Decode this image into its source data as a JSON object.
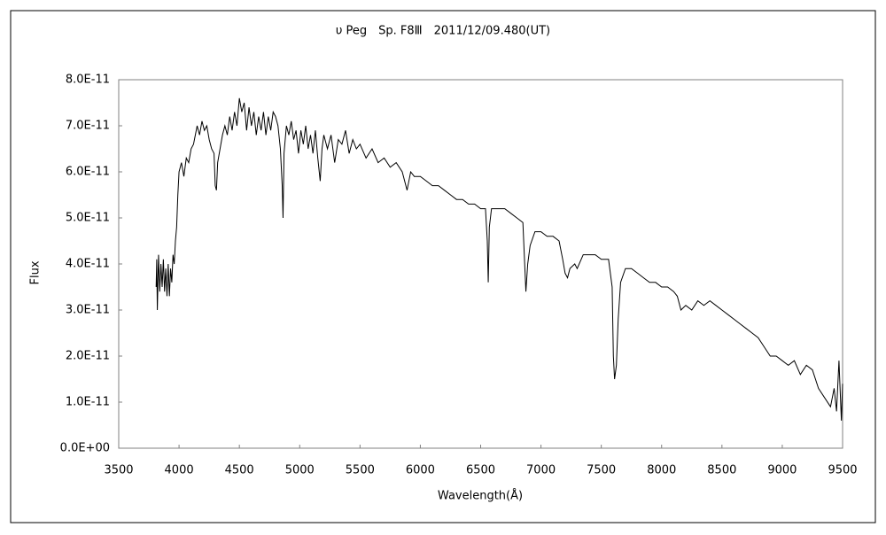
{
  "chart_data": {
    "type": "line",
    "title": "υ Peg　Sp. F8Ⅲ　2011/12/09.480(UT)",
    "xlabel": "Wavelength(Å)",
    "ylabel": "Flux",
    "xlim": [
      3500,
      9500
    ],
    "xticks": [
      3500,
      4000,
      4500,
      5000,
      5500,
      6000,
      6500,
      7000,
      7500,
      8000,
      8500,
      9000,
      9500
    ],
    "ylim": [
      0,
      8e-11
    ],
    "yticks": [
      {
        "value": 0,
        "label": "0.0E+00"
      },
      {
        "value": 1e-11,
        "label": "1.0E-11"
      },
      {
        "value": 2e-11,
        "label": "2.0E-11"
      },
      {
        "value": 3e-11,
        "label": "3.0E-11"
      },
      {
        "value": 4e-11,
        "label": "4.0E-11"
      },
      {
        "value": 5e-11,
        "label": "5.0E-11"
      },
      {
        "value": 6e-11,
        "label": "6.0E-11"
      },
      {
        "value": 7e-11,
        "label": "7.0E-11"
      },
      {
        "value": 8e-11,
        "label": "8.0E-11"
      }
    ],
    "grid": false,
    "color": "#000000",
    "x": [
      3810,
      3815,
      3820,
      3830,
      3840,
      3850,
      3860,
      3870,
      3880,
      3890,
      3900,
      3910,
      3920,
      3930,
      3940,
      3950,
      3960,
      3970,
      3980,
      3990,
      4000,
      4020,
      4040,
      4060,
      4080,
      4100,
      4120,
      4150,
      4170,
      4190,
      4210,
      4230,
      4250,
      4270,
      4290,
      4300,
      4310,
      4320,
      4340,
      4360,
      4380,
      4400,
      4420,
      4440,
      4460,
      4480,
      4500,
      4520,
      4540,
      4560,
      4580,
      4600,
      4620,
      4640,
      4660,
      4680,
      4700,
      4720,
      4740,
      4760,
      4780,
      4800,
      4820,
      4840,
      4855,
      4862,
      4870,
      4890,
      4910,
      4930,
      4950,
      4970,
      4990,
      5010,
      5030,
      5050,
      5070,
      5090,
      5110,
      5130,
      5150,
      5170,
      5185,
      5200,
      5230,
      5260,
      5290,
      5320,
      5350,
      5380,
      5410,
      5440,
      5470,
      5500,
      5550,
      5600,
      5650,
      5700,
      5750,
      5800,
      5850,
      5890,
      5920,
      5950,
      6000,
      6050,
      6100,
      6150,
      6200,
      6250,
      6300,
      6350,
      6400,
      6450,
      6500,
      6540,
      6555,
      6563,
      6572,
      6590,
      6650,
      6700,
      6750,
      6800,
      6850,
      6865,
      6875,
      6890,
      6910,
      6950,
      7000,
      7050,
      7100,
      7150,
      7180,
      7200,
      7220,
      7240,
      7280,
      7300,
      7350,
      7400,
      7450,
      7500,
      7560,
      7590,
      7600,
      7610,
      7625,
      7640,
      7660,
      7700,
      7750,
      7800,
      7850,
      7900,
      7950,
      8000,
      8050,
      8100,
      8130,
      8160,
      8200,
      8250,
      8300,
      8350,
      8400,
      8450,
      8500,
      8550,
      8600,
      8650,
      8700,
      8750,
      8800,
      8850,
      8900,
      8950,
      9000,
      9050,
      9100,
      9150,
      9200,
      9250,
      9300,
      9350,
      9400,
      9430,
      9450,
      9470,
      9490,
      9500
    ],
    "values": [
      3.5e-11,
      4.1e-11,
      3e-11,
      4.2e-11,
      3.4e-11,
      4e-11,
      3.5e-11,
      4.1e-11,
      3.4e-11,
      3.9e-11,
      3.3e-11,
      4e-11,
      3.3e-11,
      3.9e-11,
      3.6e-11,
      4.2e-11,
      4e-11,
      4.5e-11,
      4.8e-11,
      5.5e-11,
      6e-11,
      6.2e-11,
      5.9e-11,
      6.3e-11,
      6.2e-11,
      6.5e-11,
      6.6e-11,
      7e-11,
      6.8e-11,
      7.1e-11,
      6.9e-11,
      7e-11,
      6.7e-11,
      6.5e-11,
      6.4e-11,
      5.7e-11,
      5.6e-11,
      6.2e-11,
      6.5e-11,
      6.8e-11,
      7e-11,
      6.8e-11,
      7.2e-11,
      6.9e-11,
      7.3e-11,
      7e-11,
      7.6e-11,
      7.3e-11,
      7.5e-11,
      6.9e-11,
      7.4e-11,
      7e-11,
      7.3e-11,
      6.8e-11,
      7.2e-11,
      6.9e-11,
      7.3e-11,
      6.8e-11,
      7.2e-11,
      6.9e-11,
      7.3e-11,
      7.2e-11,
      7e-11,
      6.5e-11,
      5.7e-11,
      5e-11,
      6.4e-11,
      7e-11,
      6.8e-11,
      7.1e-11,
      6.7e-11,
      6.9e-11,
      6.4e-11,
      6.9e-11,
      6.6e-11,
      7e-11,
      6.5e-11,
      6.8e-11,
      6.4e-11,
      6.9e-11,
      6.3e-11,
      5.8e-11,
      6.5e-11,
      6.8e-11,
      6.5e-11,
      6.8e-11,
      6.2e-11,
      6.7e-11,
      6.6e-11,
      6.9e-11,
      6.4e-11,
      6.7e-11,
      6.5e-11,
      6.6e-11,
      6.3e-11,
      6.5e-11,
      6.2e-11,
      6.3e-11,
      6.1e-11,
      6.2e-11,
      6e-11,
      5.6e-11,
      6e-11,
      5.9e-11,
      5.9e-11,
      5.8e-11,
      5.7e-11,
      5.7e-11,
      5.6e-11,
      5.5e-11,
      5.4e-11,
      5.4e-11,
      5.3e-11,
      5.3e-11,
      5.2e-11,
      5.2e-11,
      4.5e-11,
      3.6e-11,
      4.8e-11,
      5.2e-11,
      5.2e-11,
      5.2e-11,
      5.1e-11,
      5e-11,
      4.9e-11,
      4e-11,
      3.4e-11,
      4e-11,
      4.4e-11,
      4.7e-11,
      4.7e-11,
      4.6e-11,
      4.6e-11,
      4.5e-11,
      4.1e-11,
      3.8e-11,
      3.7e-11,
      3.9e-11,
      4e-11,
      3.9e-11,
      4.2e-11,
      4.2e-11,
      4.2e-11,
      4.1e-11,
      4.1e-11,
      3.5e-11,
      2e-11,
      1.5e-11,
      1.8e-11,
      2.8e-11,
      3.6e-11,
      3.9e-11,
      3.9e-11,
      3.8e-11,
      3.7e-11,
      3.6e-11,
      3.6e-11,
      3.5e-11,
      3.5e-11,
      3.4e-11,
      3.3e-11,
      3e-11,
      3.1e-11,
      3e-11,
      3.2e-11,
      3.1e-11,
      3.2e-11,
      3.1e-11,
      3e-11,
      2.9e-11,
      2.8e-11,
      2.7e-11,
      2.6e-11,
      2.5e-11,
      2.4e-11,
      2.2e-11,
      2e-11,
      2e-11,
      1.9e-11,
      1.8e-11,
      1.9e-11,
      1.6e-11,
      1.8e-11,
      1.7e-11,
      1.3e-11,
      1.1e-11,
      9e-12,
      1.3e-11,
      8e-12,
      1.9e-11,
      6e-12,
      1.4e-11
    ]
  }
}
